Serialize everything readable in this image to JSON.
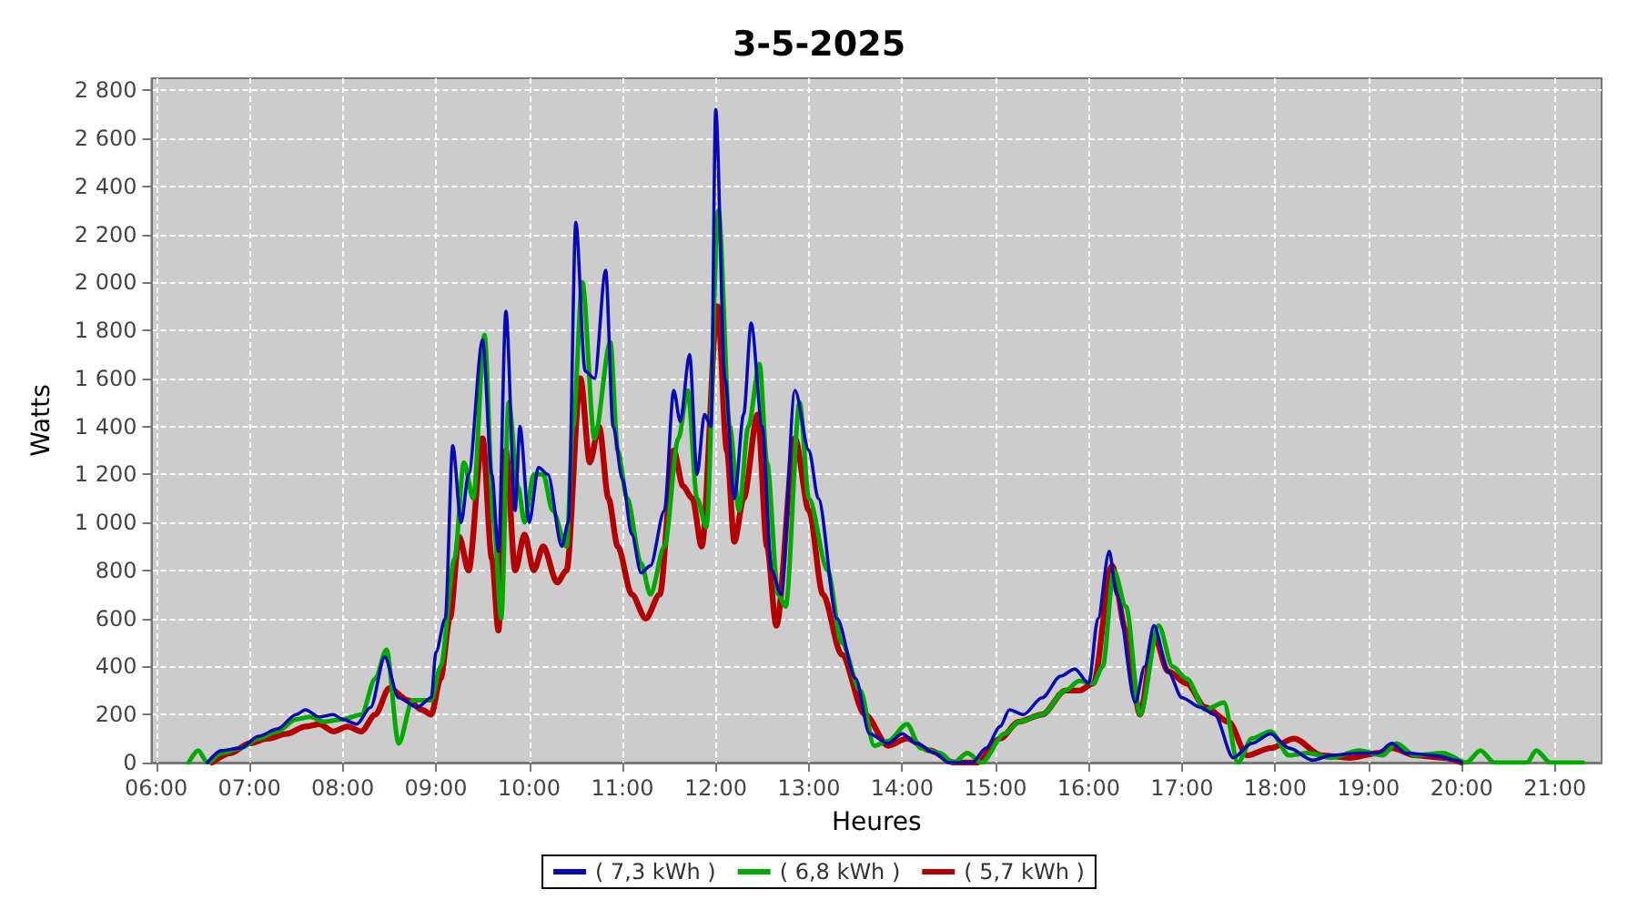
{
  "chart_data": {
    "type": "line",
    "title": "3-5-2025",
    "xlabel": "Heures",
    "ylabel": "Watts",
    "xlim": [
      5.95,
      21.5
    ],
    "ylim": [
      0,
      2850
    ],
    "xticks": [
      {
        "value": 6,
        "label": "06:00"
      },
      {
        "value": 7,
        "label": "07:00"
      },
      {
        "value": 8,
        "label": "08:00"
      },
      {
        "value": 9,
        "label": "09:00"
      },
      {
        "value": 10,
        "label": "10:00"
      },
      {
        "value": 11,
        "label": "11:00"
      },
      {
        "value": 12,
        "label": "12:00"
      },
      {
        "value": 13,
        "label": "13:00"
      },
      {
        "value": 14,
        "label": "14:00"
      },
      {
        "value": 15,
        "label": "15:00"
      },
      {
        "value": 16,
        "label": "16:00"
      },
      {
        "value": 17,
        "label": "17:00"
      },
      {
        "value": 18,
        "label": "18:00"
      },
      {
        "value": 19,
        "label": "19:00"
      },
      {
        "value": 20,
        "label": "20:00"
      },
      {
        "value": 21,
        "label": "21:00"
      }
    ],
    "yticks": [
      0,
      200,
      400,
      600,
      800,
      {
        "value": 1000,
        "label": "1 000"
      },
      {
        "value": 1200,
        "label": "1 200"
      },
      {
        "value": 1400,
        "label": "1 400"
      },
      {
        "value": 1600,
        "label": "1 600"
      },
      {
        "value": 1800,
        "label": "1 800"
      },
      {
        "value": 2000,
        "label": "2 000"
      },
      {
        "value": 2200,
        "label": "2 200"
      },
      {
        "value": 2400,
        "label": "2 400"
      },
      {
        "value": 2600,
        "label": "2 600"
      },
      {
        "value": 2800,
        "label": "2 800"
      }
    ],
    "grid": true,
    "legend": "bottom",
    "marker": "none",
    "line_style": "solid",
    "series": [
      {
        "name": "( 7,3 kWh )",
        "color": "#0a0ab4",
        "x": [
          6.55,
          6.7,
          6.9,
          7.1,
          7.3,
          7.5,
          7.6,
          7.75,
          7.9,
          8.0,
          8.15,
          8.3,
          8.45,
          8.6,
          8.8,
          8.95,
          9.0,
          9.1,
          9.18,
          9.27,
          9.35,
          9.5,
          9.6,
          9.67,
          9.75,
          9.85,
          9.9,
          10.0,
          10.1,
          10.2,
          10.35,
          10.42,
          10.5,
          10.6,
          10.7,
          10.82,
          10.9,
          11.0,
          11.1,
          11.2,
          11.3,
          11.45,
          11.55,
          11.62,
          11.72,
          11.8,
          11.88,
          11.95,
          12.0,
          12.1,
          12.2,
          12.3,
          12.38,
          12.5,
          12.6,
          12.7,
          12.85,
          13.0,
          13.1,
          13.3,
          13.5,
          13.65,
          13.85,
          14.0,
          14.15,
          14.35,
          14.5,
          14.75,
          14.9,
          15.05,
          15.15,
          15.3,
          15.5,
          15.7,
          15.85,
          16.0,
          16.1,
          16.22,
          16.3,
          16.5,
          16.6,
          16.7,
          16.85,
          17.0,
          17.2,
          17.35,
          17.55,
          17.75,
          17.95,
          18.15,
          18.4,
          18.6,
          18.9,
          19.1,
          19.25,
          19.4,
          19.7,
          19.95,
          20.0
        ],
        "values": [
          0,
          50,
          60,
          110,
          140,
          200,
          220,
          190,
          200,
          180,
          160,
          230,
          440,
          270,
          230,
          270,
          460,
          600,
          1320,
          1000,
          1200,
          1760,
          1200,
          880,
          1880,
          1050,
          1400,
          1000,
          1230,
          1200,
          900,
          1000,
          2250,
          1630,
          1600,
          2050,
          1400,
          1180,
          950,
          790,
          820,
          1050,
          1550,
          1420,
          1700,
          1200,
          1450,
          1400,
          2720,
          1600,
          1100,
          1450,
          1830,
          1400,
          800,
          700,
          1550,
          1300,
          1100,
          600,
          350,
          120,
          80,
          120,
          80,
          40,
          0,
          0,
          60,
          150,
          220,
          200,
          270,
          360,
          390,
          330,
          600,
          880,
          700,
          250,
          400,
          570,
          380,
          270,
          230,
          200,
          20,
          80,
          120,
          60,
          10,
          30,
          40,
          40,
          80,
          40,
          30,
          10,
          0
        ]
      },
      {
        "name": "( 6,8 kWh )",
        "color": "#00aa00",
        "x": [
          6.35,
          6.45,
          6.55,
          6.7,
          6.9,
          7.1,
          7.3,
          7.5,
          7.65,
          7.8,
          8.0,
          8.2,
          8.35,
          8.47,
          8.6,
          8.75,
          8.95,
          9.05,
          9.2,
          9.3,
          9.4,
          9.52,
          9.62,
          9.7,
          9.78,
          9.88,
          9.95,
          10.05,
          10.15,
          10.25,
          10.4,
          10.47,
          10.57,
          10.7,
          10.87,
          10.95,
          11.05,
          11.2,
          11.3,
          11.45,
          11.6,
          11.7,
          11.8,
          11.9,
          12.03,
          12.15,
          12.25,
          12.35,
          12.47,
          12.55,
          12.67,
          12.75,
          12.9,
          13.0,
          13.2,
          13.35,
          13.55,
          13.7,
          13.85,
          14.05,
          14.2,
          14.4,
          14.55,
          14.7,
          14.85,
          15.1,
          15.25,
          15.5,
          15.75,
          15.9,
          16.05,
          16.15,
          16.27,
          16.4,
          16.55,
          16.75,
          16.9,
          17.05,
          17.25,
          17.45,
          17.6,
          17.75,
          17.95,
          18.15,
          18.35,
          18.6,
          18.9,
          19.15,
          19.3,
          19.5,
          19.8,
          20.05,
          20.2,
          20.35,
          20.7,
          20.8,
          20.95,
          21.3
        ],
        "values": [
          0,
          50,
          0,
          40,
          60,
          100,
          130,
          180,
          190,
          170,
          180,
          200,
          350,
          470,
          80,
          260,
          260,
          400,
          850,
          1250,
          1100,
          1780,
          1000,
          600,
          1500,
          1150,
          1000,
          1200,
          1200,
          1050,
          900,
          1400,
          2000,
          1350,
          1750,
          1300,
          1100,
          830,
          700,
          900,
          1350,
          1550,
          1100,
          980,
          2300,
          1400,
          1050,
          1400,
          1660,
          1250,
          700,
          650,
          1500,
          1100,
          800,
          500,
          300,
          70,
          90,
          160,
          60,
          40,
          0,
          40,
          0,
          120,
          170,
          200,
          300,
          340,
          330,
          400,
          800,
          650,
          200,
          570,
          400,
          350,
          220,
          250,
          0,
          100,
          130,
          30,
          40,
          20,
          50,
          30,
          80,
          30,
          40,
          0,
          50,
          0,
          0,
          50,
          0,
          0
        ]
      },
      {
        "name": "( 5,7 kWh )",
        "color": "#b40000",
        "x": [
          6.6,
          6.8,
          7.0,
          7.2,
          7.4,
          7.6,
          7.75,
          7.9,
          8.05,
          8.2,
          8.35,
          8.5,
          8.7,
          8.85,
          8.95,
          9.05,
          9.15,
          9.25,
          9.35,
          9.5,
          9.6,
          9.67,
          9.75,
          9.85,
          9.95,
          10.05,
          10.15,
          10.3,
          10.4,
          10.55,
          10.65,
          10.75,
          10.85,
          10.95,
          11.1,
          11.25,
          11.4,
          11.55,
          11.65,
          11.75,
          11.85,
          12.02,
          12.12,
          12.2,
          12.3,
          12.45,
          12.55,
          12.65,
          12.85,
          13.0,
          13.15,
          13.35,
          13.6,
          13.85,
          14.05,
          14.3,
          14.55,
          14.8,
          15.05,
          15.25,
          15.5,
          15.75,
          15.9,
          16.05,
          16.25,
          16.4,
          16.55,
          16.7,
          16.85,
          17.05,
          17.25,
          17.5,
          17.7,
          17.95,
          18.2,
          18.5,
          18.8,
          19.1,
          19.25,
          19.5,
          19.8,
          20.0
        ],
        "values": [
          0,
          40,
          80,
          100,
          120,
          150,
          160,
          130,
          150,
          130,
          200,
          310,
          260,
          220,
          200,
          350,
          600,
          940,
          800,
          1350,
          850,
          550,
          1300,
          800,
          950,
          800,
          900,
          750,
          800,
          1600,
          1250,
          1400,
          1100,
          900,
          700,
          600,
          700,
          1300,
          1150,
          1100,
          900,
          1900,
          1300,
          920,
          1100,
          1450,
          900,
          570,
          1350,
          1050,
          700,
          450,
          200,
          70,
          100,
          50,
          0,
          0,
          100,
          170,
          200,
          300,
          300,
          330,
          820,
          550,
          200,
          530,
          380,
          330,
          230,
          170,
          30,
          60,
          100,
          30,
          20,
          40,
          60,
          30,
          20,
          0
        ]
      }
    ]
  }
}
